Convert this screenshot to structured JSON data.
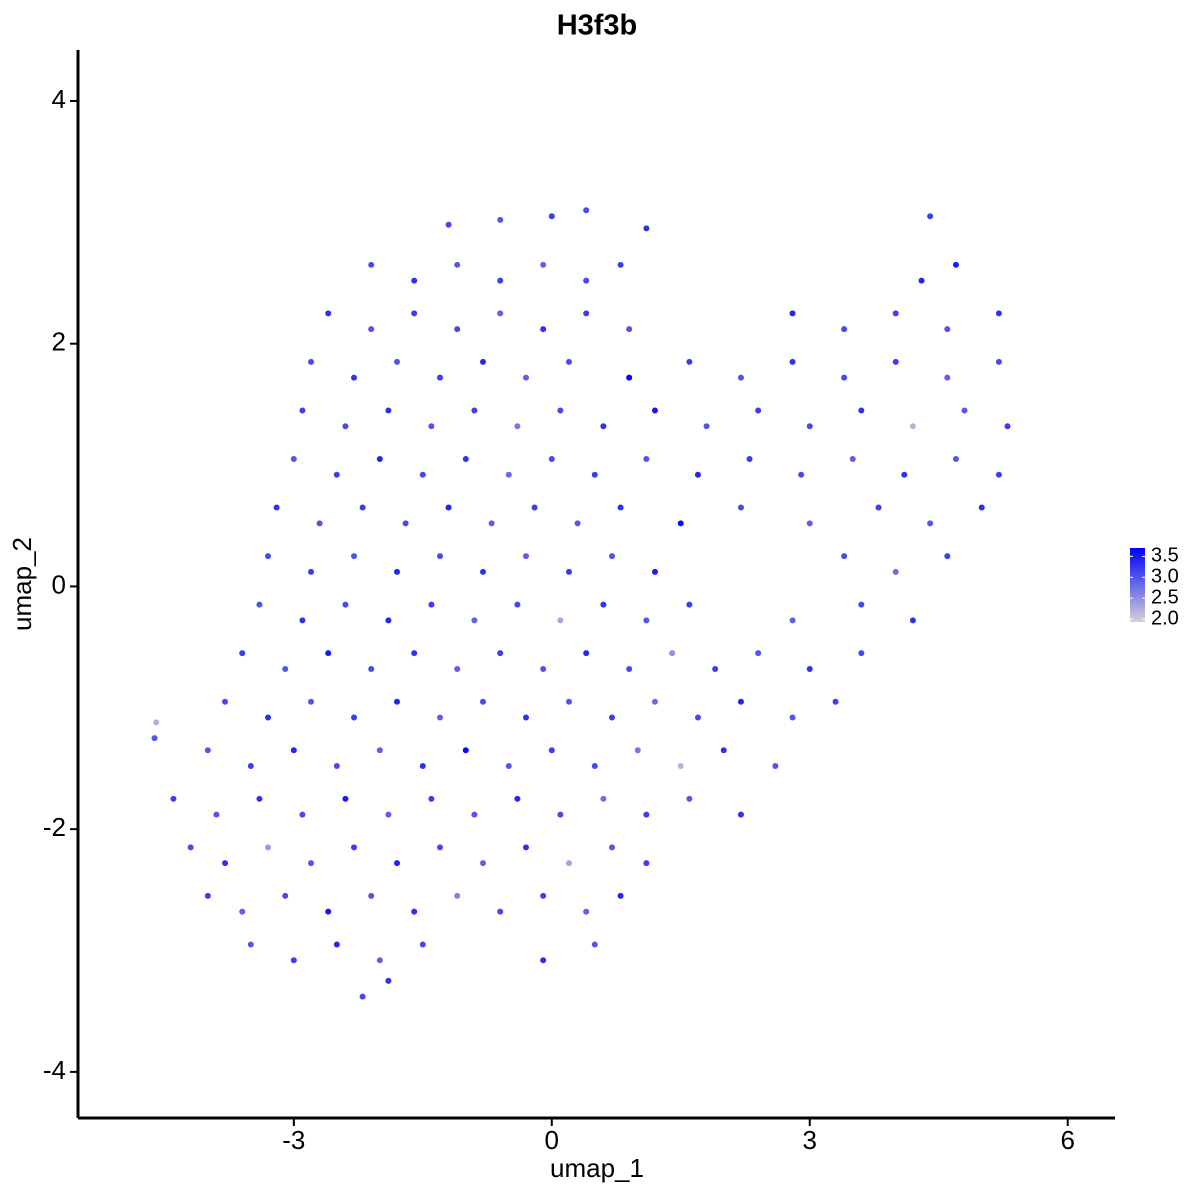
{
  "chart_data": {
    "type": "scatter",
    "title": "H3f3b",
    "x_label": "umap_1",
    "y_label": "umap_2",
    "xlim": [
      -5.51,
      6.55
    ],
    "ylim": [
      -4.38,
      4.42
    ],
    "xticks": [
      -3,
      0,
      3,
      6
    ],
    "yticks": [
      -4,
      -2,
      0,
      2,
      4
    ],
    "color_scale": {
      "colors": [
        "#d3d3d3",
        "#0000ff"
      ],
      "lim": [
        1.93,
        3.7
      ],
      "ticks": [
        {
          "value": 2,
          "label": "2.0"
        },
        {
          "value": 2.5,
          "label": "2.5"
        },
        {
          "value": 3,
          "label": "3.0"
        },
        {
          "value": 3.5,
          "label": "3.5"
        }
      ]
    },
    "x": [
      -2.2,
      -1.9,
      -3.5,
      -3.0,
      -2.5,
      -2.0,
      -1.5,
      -0.1,
      0.5,
      -4.0,
      -3.6,
      -3.1,
      -2.6,
      -2.1,
      -1.6,
      -1.1,
      -0.6,
      -0.1,
      0.4,
      0.8,
      -4.2,
      -3.8,
      -3.3,
      -2.8,
      -2.3,
      -1.8,
      -1.3,
      -0.8,
      -0.3,
      0.2,
      0.7,
      1.1,
      -4.4,
      -3.9,
      -3.4,
      -2.9,
      -2.4,
      -1.9,
      -1.4,
      -0.9,
      -0.4,
      0.1,
      0.6,
      1.1,
      1.6,
      2.2,
      -4.0,
      -3.5,
      -3.0,
      -2.5,
      -2.0,
      -1.5,
      -1.0,
      -0.5,
      0.0,
      0.5,
      1.0,
      1.5,
      2.0,
      2.6,
      -3.8,
      -3.3,
      -2.8,
      -2.3,
      -1.8,
      -1.3,
      -0.8,
      -0.3,
      0.2,
      0.7,
      1.2,
      1.7,
      2.2,
      2.8,
      3.3,
      -3.6,
      -3.1,
      -2.6,
      -2.1,
      -1.6,
      -1.1,
      -0.6,
      -0.1,
      0.4,
      0.9,
      1.4,
      1.9,
      2.4,
      3.0,
      3.6,
      -3.4,
      -2.9,
      -2.4,
      -1.9,
      -1.4,
      -0.9,
      -0.4,
      0.1,
      0.6,
      1.1,
      1.6,
      2.8,
      3.6,
      4.2,
      -3.3,
      -2.8,
      -2.3,
      -1.8,
      -1.3,
      -0.8,
      -0.3,
      0.2,
      0.7,
      1.2,
      3.4,
      4.0,
      4.6,
      -3.2,
      -2.7,
      -2.2,
      -1.7,
      -1.2,
      -0.7,
      -0.2,
      0.3,
      0.8,
      1.5,
      2.2,
      3.0,
      3.8,
      4.4,
      5.0,
      -3.0,
      -2.5,
      -2.0,
      -1.5,
      -1.0,
      -0.5,
      0.0,
      0.5,
      1.1,
      1.7,
      2.3,
      2.9,
      3.5,
      4.1,
      4.7,
      5.2,
      -2.9,
      -2.4,
      -1.9,
      -1.4,
      -0.9,
      -0.4,
      0.1,
      0.6,
      1.2,
      1.8,
      2.4,
      3.0,
      3.6,
      4.2,
      4.8,
      5.3,
      -2.8,
      -2.3,
      -1.8,
      -1.3,
      -0.8,
      -0.3,
      0.2,
      0.9,
      1.6,
      2.2,
      2.8,
      3.4,
      4.0,
      4.6,
      5.2,
      -2.6,
      -2.1,
      -1.6,
      -1.1,
      -0.6,
      -0.1,
      0.4,
      0.9,
      2.8,
      3.4,
      4.0,
      4.6,
      5.2,
      -2.1,
      -1.6,
      -1.1,
      -0.6,
      -0.1,
      0.4,
      0.8,
      4.3,
      4.7,
      -1.2,
      -0.6,
      0.0,
      0.4,
      1.1,
      4.4,
      -4.62,
      -4.6
    ],
    "y": [
      -3.38,
      -3.25,
      -2.95,
      -3.08,
      -2.95,
      -3.08,
      -2.95,
      -3.08,
      -2.95,
      -2.55,
      -2.68,
      -2.55,
      -2.68,
      -2.55,
      -2.68,
      -2.55,
      -2.68,
      -2.55,
      -2.68,
      -2.55,
      -2.15,
      -2.28,
      -2.15,
      -2.28,
      -2.15,
      -2.28,
      -2.15,
      -2.28,
      -2.15,
      -2.28,
      -2.15,
      -2.28,
      -1.75,
      -1.88,
      -1.75,
      -1.88,
      -1.75,
      -1.88,
      -1.75,
      -1.88,
      -1.75,
      -1.88,
      -1.75,
      -1.88,
      -1.75,
      -1.88,
      -1.35,
      -1.48,
      -1.35,
      -1.48,
      -1.35,
      -1.48,
      -1.35,
      -1.48,
      -1.35,
      -1.48,
      -1.35,
      -1.48,
      -1.35,
      -1.48,
      -0.95,
      -1.08,
      -0.95,
      -1.08,
      -0.95,
      -1.08,
      -0.95,
      -1.08,
      -0.95,
      -1.08,
      -0.95,
      -1.08,
      -0.95,
      -1.08,
      -0.95,
      -0.55,
      -0.68,
      -0.55,
      -0.68,
      -0.55,
      -0.68,
      -0.55,
      -0.68,
      -0.55,
      -0.68,
      -0.55,
      -0.68,
      -0.55,
      -0.68,
      -0.55,
      -0.15,
      -0.28,
      -0.15,
      -0.28,
      -0.15,
      -0.28,
      -0.15,
      -0.28,
      -0.15,
      -0.28,
      -0.15,
      -0.28,
      -0.15,
      -0.28,
      0.25,
      0.12,
      0.25,
      0.12,
      0.25,
      0.12,
      0.25,
      0.12,
      0.25,
      0.12,
      0.25,
      0.12,
      0.25,
      0.65,
      0.52,
      0.65,
      0.52,
      0.65,
      0.52,
      0.65,
      0.52,
      0.65,
      0.52,
      0.65,
      0.52,
      0.65,
      0.52,
      0.65,
      1.05,
      0.92,
      1.05,
      0.92,
      1.05,
      0.92,
      1.05,
      0.92,
      1.05,
      0.92,
      1.05,
      0.92,
      1.05,
      0.92,
      1.05,
      0.92,
      1.45,
      1.32,
      1.45,
      1.32,
      1.45,
      1.32,
      1.45,
      1.32,
      1.45,
      1.32,
      1.45,
      1.32,
      1.45,
      1.32,
      1.45,
      1.32,
      1.85,
      1.72,
      1.85,
      1.72,
      1.85,
      1.72,
      1.85,
      1.72,
      1.85,
      1.72,
      1.85,
      1.72,
      1.85,
      1.72,
      1.85,
      2.25,
      2.12,
      2.25,
      2.12,
      2.25,
      2.12,
      2.25,
      2.12,
      2.25,
      2.12,
      2.25,
      2.12,
      2.25,
      2.65,
      2.52,
      2.65,
      2.52,
      2.65,
      2.52,
      2.65,
      2.52,
      2.65,
      2.98,
      3.02,
      3.05,
      3.1,
      2.95,
      3.05,
      -1.25,
      -1.12
    ],
    "values": [
      3.1,
      3.3,
      3.0,
      3.2,
      3.4,
      2.9,
      3.1,
      3.3,
      3.0,
      3.2,
      2.9,
      3.1,
      3.5,
      3.0,
      3.3,
      2.6,
      3.1,
      3.2,
      2.9,
      3.4,
      3.1,
      3.3,
      2.4,
      3.0,
      3.2,
      3.4,
      3.1,
      2.9,
      3.3,
      2.3,
      3.0,
      3.2,
      3.2,
      3.0,
      3.3,
      3.1,
      3.5,
      2.9,
      3.2,
      3.0,
      3.4,
      3.1,
      2.8,
      3.2,
      3.0,
      3.3,
      3.0,
      3.2,
      3.4,
      3.1,
      2.9,
      3.3,
      3.6,
      3.0,
      3.2,
      3.1,
      2.7,
      2.2,
      3.3,
      3.0,
      3.1,
      3.3,
      3.0,
      3.2,
      3.4,
      2.9,
      3.1,
      3.3,
      3.0,
      3.2,
      2.8,
      3.1,
      3.4,
      3.0,
      3.2,
      3.2,
      3.0,
      3.5,
      3.1,
      3.3,
      2.9,
      3.2,
      3.0,
      3.4,
      3.1,
      2.5,
      3.2,
      3.0,
      3.3,
      3.1,
      3.0,
      3.3,
      3.1,
      3.4,
      3.2,
      2.9,
      3.1,
      2.3,
      3.3,
      3.0,
      3.2,
      2.9,
      3.1,
      3.3,
      3.1,
      3.2,
      3.0,
      3.4,
      3.1,
      3.3,
      2.9,
      3.2,
      3.0,
      3.5,
      3.1,
      2.8,
      3.2,
      3.3,
      3.0,
      3.2,
      3.1,
      3.4,
      2.9,
      3.2,
      3.0,
      3.3,
      3.6,
      3.1,
      2.9,
      3.2,
      3.0,
      3.3,
      3.0,
      3.2,
      3.4,
      3.1,
      3.3,
      2.8,
      3.1,
      3.2,
      3.0,
      3.4,
      3.2,
      3.1,
      2.9,
      3.3,
      3.0,
      3.2,
      3.2,
      3.1,
      3.3,
      3.0,
      3.2,
      2.7,
      3.1,
      3.3,
      3.5,
      3.0,
      3.2,
      3.1,
      3.3,
      2.2,
      3.0,
      3.2,
      3.1,
      3.3,
      3.0,
      3.2,
      3.4,
      2.9,
      3.1,
      3.7,
      3.2,
      3.0,
      3.3,
      3.1,
      3.2,
      2.9,
      3.1,
      3.3,
      3.0,
      3.2,
      3.1,
      2.9,
      3.3,
      3.2,
      3.0,
      3.4,
      3.1,
      3.2,
      3.0,
      3.3,
      3.1,
      3.3,
      3.0,
      3.2,
      2.9,
      3.1,
      3.2,
      3.4,
      3.5,
      3.1,
      3.0,
      3.2,
      3.1,
      3.3,
      3.2,
      3.0,
      2.2
    ]
  }
}
